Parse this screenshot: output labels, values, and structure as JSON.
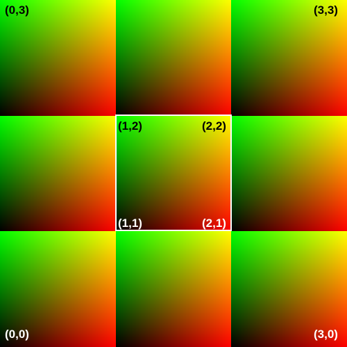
{
  "labels": {
    "top_left": "(0,3)",
    "top_right": "(3,3)",
    "center_top_left": "(1,2)",
    "center_top_right": "(2,2)",
    "center_bottom_left": "(1,1)",
    "center_bottom_right": "(2,1)",
    "bottom_left": "(0,0)",
    "bottom_right": "(3,0)"
  },
  "colors": {
    "frame": "#ffffff",
    "label_dark": "#000000",
    "label_light": "#ffffff",
    "gradient_green": "#00ff00",
    "gradient_red": "#ff0000",
    "gradient_black": "#000000"
  }
}
